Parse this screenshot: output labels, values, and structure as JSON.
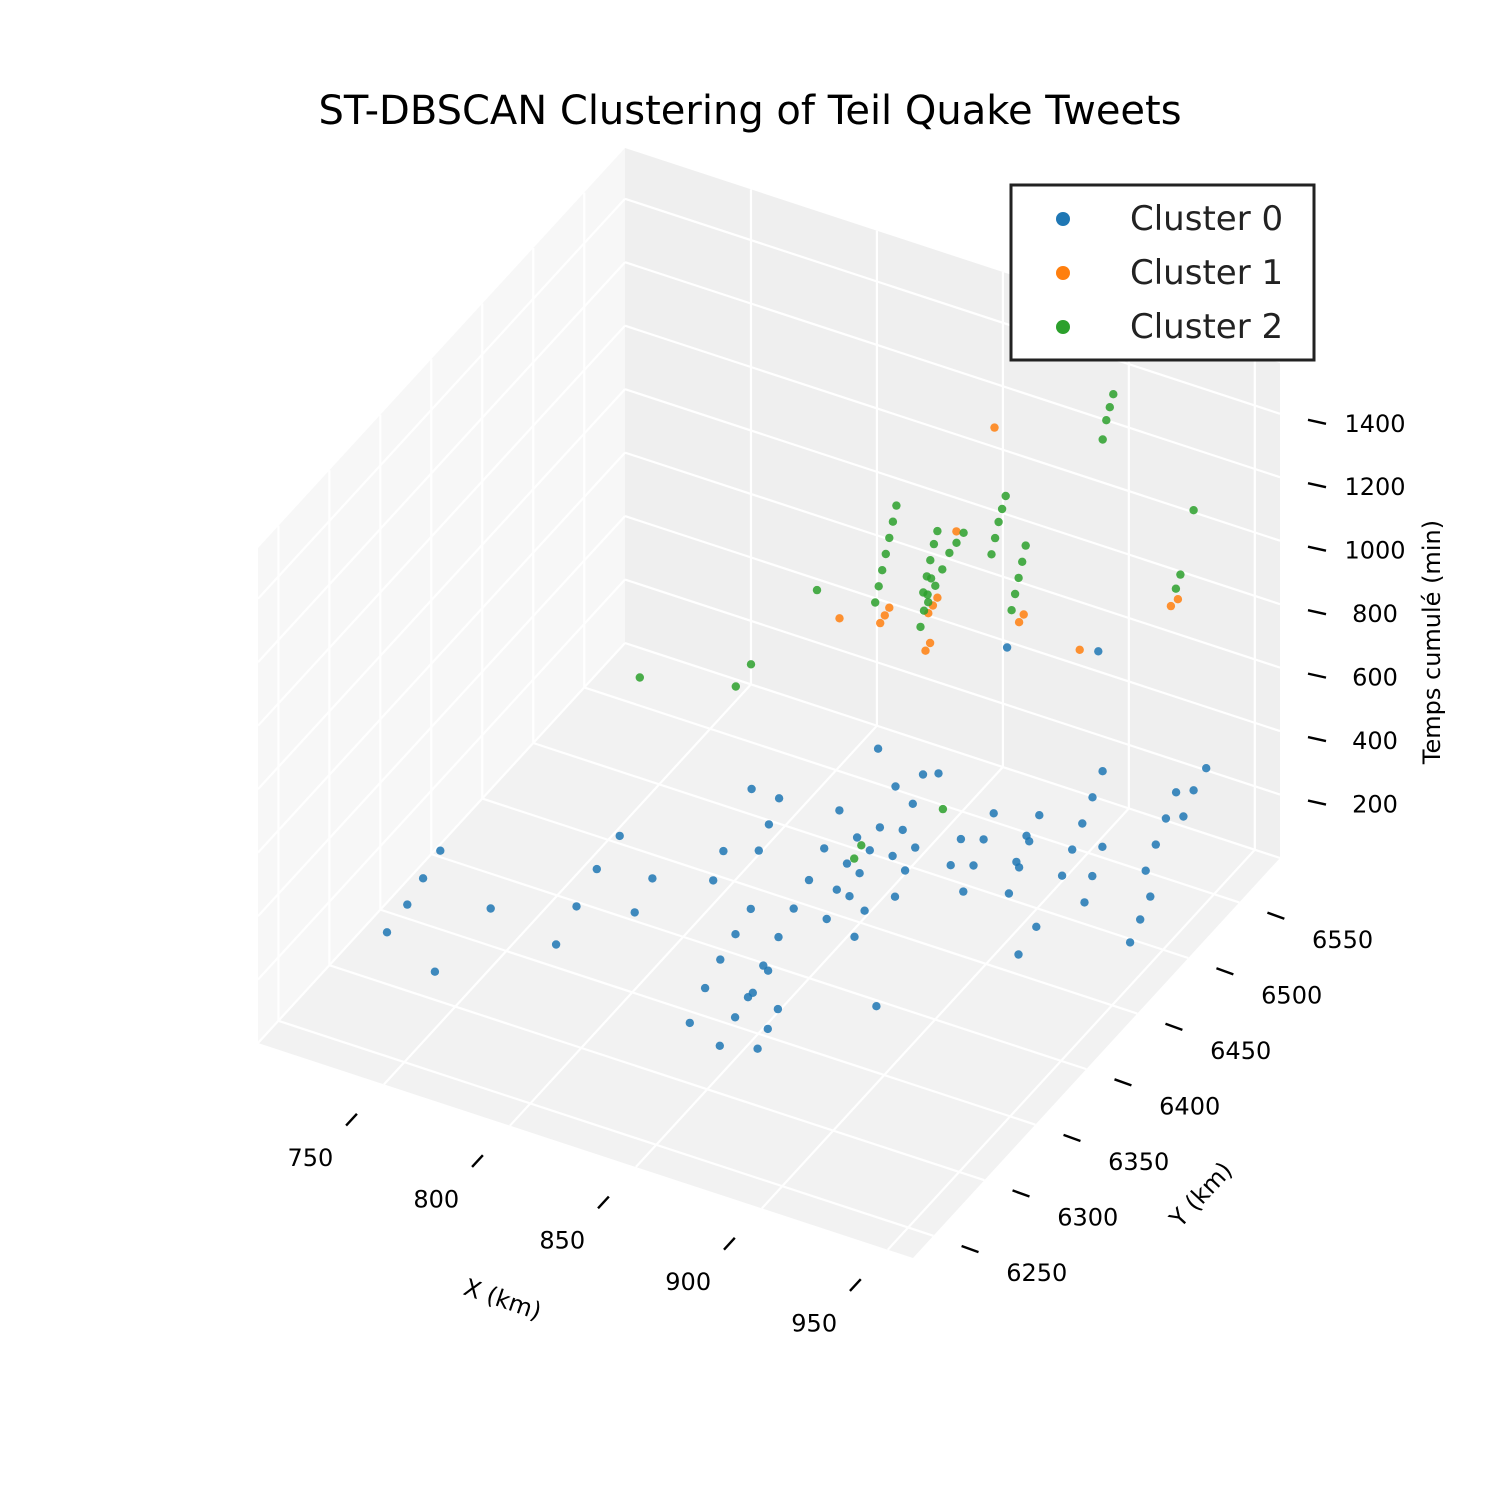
{
  "chart_data": {
    "type": "scatter",
    "projection": "3d",
    "title": "ST-DBSCAN Clustering of Teil Quake Tweets",
    "xlabel": "X (km)",
    "ylabel": "Y (km)",
    "zlabel": "Temps cumulé (min)",
    "xlim": [
      700,
      960
    ],
    "ylim": [
      6230,
      6590
    ],
    "zlim": [
      0,
      1560
    ],
    "xticks": [
      "750",
      "800",
      "850",
      "900",
      "950"
    ],
    "yticks": [
      "6250",
      "6300",
      "6350",
      "6400",
      "6450",
      "6500",
      "6550"
    ],
    "zticks": [
      "200",
      "400",
      "600",
      "800",
      "1000",
      "1200",
      "1400"
    ],
    "grid": true,
    "legend_position": "top-right",
    "series": [
      {
        "name": "Cluster 0",
        "color": "#1f77b4",
        "points": [
          [
            735,
            6270,
            300
          ],
          [
            737,
            6285,
            340
          ],
          [
            738,
            6298,
            380
          ],
          [
            740,
            6310,
            430
          ],
          [
            790,
            6320,
            350
          ],
          [
            792,
            6335,
            420
          ],
          [
            795,
            6350,
            480
          ],
          [
            790,
            6300,
            300
          ],
          [
            835,
            6320,
            100
          ],
          [
            837,
            6330,
            180
          ],
          [
            839,
            6340,
            240
          ],
          [
            841,
            6350,
            290
          ],
          [
            843,
            6360,
            340
          ],
          [
            850,
            6340,
            150
          ],
          [
            852,
            6350,
            220
          ],
          [
            854,
            6360,
            280
          ],
          [
            856,
            6370,
            340
          ],
          [
            858,
            6380,
            400
          ],
          [
            860,
            6390,
            470
          ],
          [
            862,
            6400,
            560
          ],
          [
            861,
            6390,
            250
          ],
          [
            863,
            6395,
            330
          ],
          [
            865,
            6400,
            400
          ],
          [
            867,
            6405,
            470
          ],
          [
            866,
            6400,
            300
          ],
          [
            868,
            6405,
            360
          ],
          [
            870,
            6410,
            420
          ],
          [
            872,
            6415,
            480
          ],
          [
            870,
            6395,
            200
          ],
          [
            872,
            6400,
            270
          ],
          [
            875,
            6420,
            380
          ],
          [
            877,
            6425,
            450
          ],
          [
            879,
            6430,
            520
          ],
          [
            881,
            6435,
            600
          ],
          [
            880,
            6410,
            300
          ],
          [
            882,
            6415,
            370
          ],
          [
            884,
            6420,
            430
          ],
          [
            895,
            6440,
            250
          ],
          [
            897,
            6445,
            320
          ],
          [
            899,
            6450,
            390
          ],
          [
            901,
            6455,
            460
          ],
          [
            905,
            6460,
            200
          ],
          [
            907,
            6465,
            270
          ],
          [
            909,
            6470,
            340
          ],
          [
            911,
            6475,
            410
          ],
          [
            918,
            6480,
            220
          ],
          [
            920,
            6485,
            290
          ],
          [
            922,
            6490,
            360
          ],
          [
            924,
            6495,
            430
          ],
          [
            926,
            6500,
            500
          ],
          [
            930,
            6480,
            250
          ],
          [
            932,
            6485,
            330
          ],
          [
            935,
            6520,
            140
          ],
          [
            937,
            6525,
            210
          ],
          [
            939,
            6530,
            280
          ],
          [
            941,
            6535,
            350
          ],
          [
            910,
            6455,
            330
          ],
          [
            912,
            6460,
            400
          ],
          [
            890,
            6440,
            320
          ],
          [
            892,
            6445,
            390
          ],
          [
            925,
            6420,
            200
          ],
          [
            928,
            6430,
            260
          ],
          [
            870,
            6300,
            180
          ],
          [
            872,
            6305,
            230
          ],
          [
            874,
            6310,
            280
          ],
          [
            855,
            6300,
            150
          ],
          [
            857,
            6310,
            210
          ],
          [
            860,
            6320,
            260
          ],
          [
            862,
            6330,
            300
          ],
          [
            945,
            6480,
            80
          ],
          [
            947,
            6485,
            140
          ],
          [
            949,
            6490,
            200
          ],
          [
            950,
            6520,
            350
          ],
          [
            952,
            6525,
            420
          ],
          [
            955,
            6530,
            480
          ],
          [
            830,
            6400,
            350
          ],
          [
            832,
            6405,
            420
          ],
          [
            834,
            6410,
            490
          ],
          [
            820,
            6380,
            300
          ],
          [
            822,
            6385,
            380
          ],
          [
            805,
            6340,
            300
          ],
          [
            808,
            6350,
            380
          ],
          [
            815,
            6430,
            400
          ],
          [
            880,
            6520,
            700
          ],
          [
            900,
            6560,
            600
          ],
          [
            750,
            6280,
            180
          ],
          [
            760,
            6310,
            300
          ],
          [
            845,
            6480,
            430
          ],
          [
            905,
            6330,
            300
          ],
          [
            935,
            6460,
            250
          ],
          [
            860,
            6460,
            420
          ],
          [
            873,
            6470,
            460
          ]
        ]
      },
      {
        "name": "Cluster 1",
        "color": "#ff7f0e",
        "points": [
          [
            862,
            6440,
            1010
          ],
          [
            863,
            6442,
            1030
          ],
          [
            864,
            6444,
            1050
          ],
          [
            873,
            6460,
            1000
          ],
          [
            874,
            6462,
            1020
          ],
          [
            875,
            6464,
            1040
          ],
          [
            880,
            6440,
            970
          ],
          [
            881,
            6442,
            990
          ],
          [
            905,
            6470,
            1020
          ],
          [
            906,
            6472,
            1040
          ],
          [
            925,
            6480,
            950
          ],
          [
            945,
            6520,
            1000
          ],
          [
            947,
            6522,
            1020
          ],
          [
            875,
            6520,
            1380
          ],
          [
            872,
            6490,
            1150
          ],
          [
            858,
            6410,
            1120
          ]
        ]
      },
      {
        "name": "Cluster 2",
        "color": "#2ca02c",
        "points": [
          [
            860,
            6440,
            1070
          ],
          [
            861,
            6441,
            1120
          ],
          [
            862,
            6442,
            1170
          ],
          [
            863,
            6443,
            1220
          ],
          [
            864,
            6444,
            1270
          ],
          [
            865,
            6445,
            1320
          ],
          [
            866,
            6446,
            1370
          ],
          [
            871,
            6460,
            1060
          ],
          [
            872,
            6461,
            1110
          ],
          [
            873,
            6462,
            1160
          ],
          [
            874,
            6463,
            1210
          ],
          [
            875,
            6464,
            1250
          ],
          [
            878,
            6440,
            1040
          ],
          [
            879,
            6441,
            1090
          ],
          [
            880,
            6442,
            1140
          ],
          [
            881,
            6443,
            1190
          ],
          [
            877,
            6450,
            1080
          ],
          [
            879,
            6452,
            1130
          ],
          [
            881,
            6454,
            1180
          ],
          [
            883,
            6456,
            1230
          ],
          [
            885,
            6458,
            1260
          ],
          [
            887,
            6460,
            1290
          ],
          [
            890,
            6480,
            1160
          ],
          [
            891,
            6481,
            1210
          ],
          [
            892,
            6482,
            1260
          ],
          [
            893,
            6483,
            1300
          ],
          [
            894,
            6484,
            1340
          ],
          [
            902,
            6470,
            1050
          ],
          [
            903,
            6471,
            1100
          ],
          [
            904,
            6472,
            1150
          ],
          [
            905,
            6473,
            1200
          ],
          [
            906,
            6474,
            1250
          ],
          [
            922,
            6510,
            1500
          ],
          [
            923,
            6511,
            1560
          ],
          [
            924,
            6512,
            1600
          ],
          [
            925,
            6513,
            1640
          ],
          [
            947,
            6520,
            1060
          ],
          [
            948,
            6522,
            1100
          ],
          [
            950,
            6530,
            1280
          ],
          [
            845,
            6420,
            1140
          ],
          [
            835,
            6380,
            1020
          ],
          [
            833,
            6370,
            980
          ],
          [
            803,
            6350,
            1000
          ],
          [
            880,
            6370,
            560
          ],
          [
            882,
            6372,
            600
          ],
          [
            895,
            6420,
            580
          ]
        ]
      }
    ]
  }
}
